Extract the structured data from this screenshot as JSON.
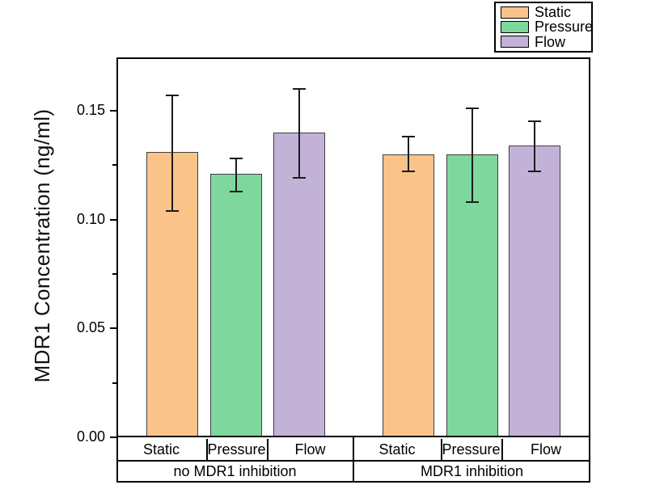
{
  "legend": {
    "items": [
      {
        "label": "Static",
        "color": "#F9C38A"
      },
      {
        "label": "Pressure",
        "color": "#7ED79C"
      },
      {
        "label": "Flow",
        "color": "#C3B2D8"
      }
    ]
  },
  "chart_data": {
    "type": "bar",
    "title": "",
    "ylabel": "MDR1 Concentration (ng/ml)",
    "xlabel": "",
    "ylim": [
      0,
      0.174
    ],
    "grid": false,
    "legend_position": "top-right",
    "yticks": [
      {
        "value": 0.0,
        "label": "0.00"
      },
      {
        "value": 0.05,
        "label": "0.05"
      },
      {
        "value": 0.1,
        "label": "0.10"
      },
      {
        "value": 0.15,
        "label": "0.15"
      }
    ],
    "minor_yticks": [
      0.025,
      0.075,
      0.125
    ],
    "series_colors": {
      "Static": "#F9C38A",
      "Pressure": "#7ED79C",
      "Flow": "#C3B2D8"
    },
    "bar_border_color": "#3f3f3f",
    "error_bar_color": "#1c1c1c",
    "groups": [
      {
        "label": "no MDR1 inhibition",
        "bars": [
          {
            "category": "Static",
            "value": 0.131,
            "err_low": 0.104,
            "err_high": 0.157
          },
          {
            "category": "Pressure",
            "value": 0.121,
            "err_low": 0.113,
            "err_high": 0.128
          },
          {
            "category": "Flow",
            "value": 0.14,
            "err_low": 0.119,
            "err_high": 0.16
          }
        ]
      },
      {
        "label": "MDR1 inhibition",
        "bars": [
          {
            "category": "Static",
            "value": 0.13,
            "err_low": 0.122,
            "err_high": 0.138
          },
          {
            "category": "Pressure",
            "value": 0.13,
            "err_low": 0.108,
            "err_high": 0.151
          },
          {
            "category": "Flow",
            "value": 0.134,
            "err_low": 0.122,
            "err_high": 0.145
          }
        ]
      }
    ]
  }
}
